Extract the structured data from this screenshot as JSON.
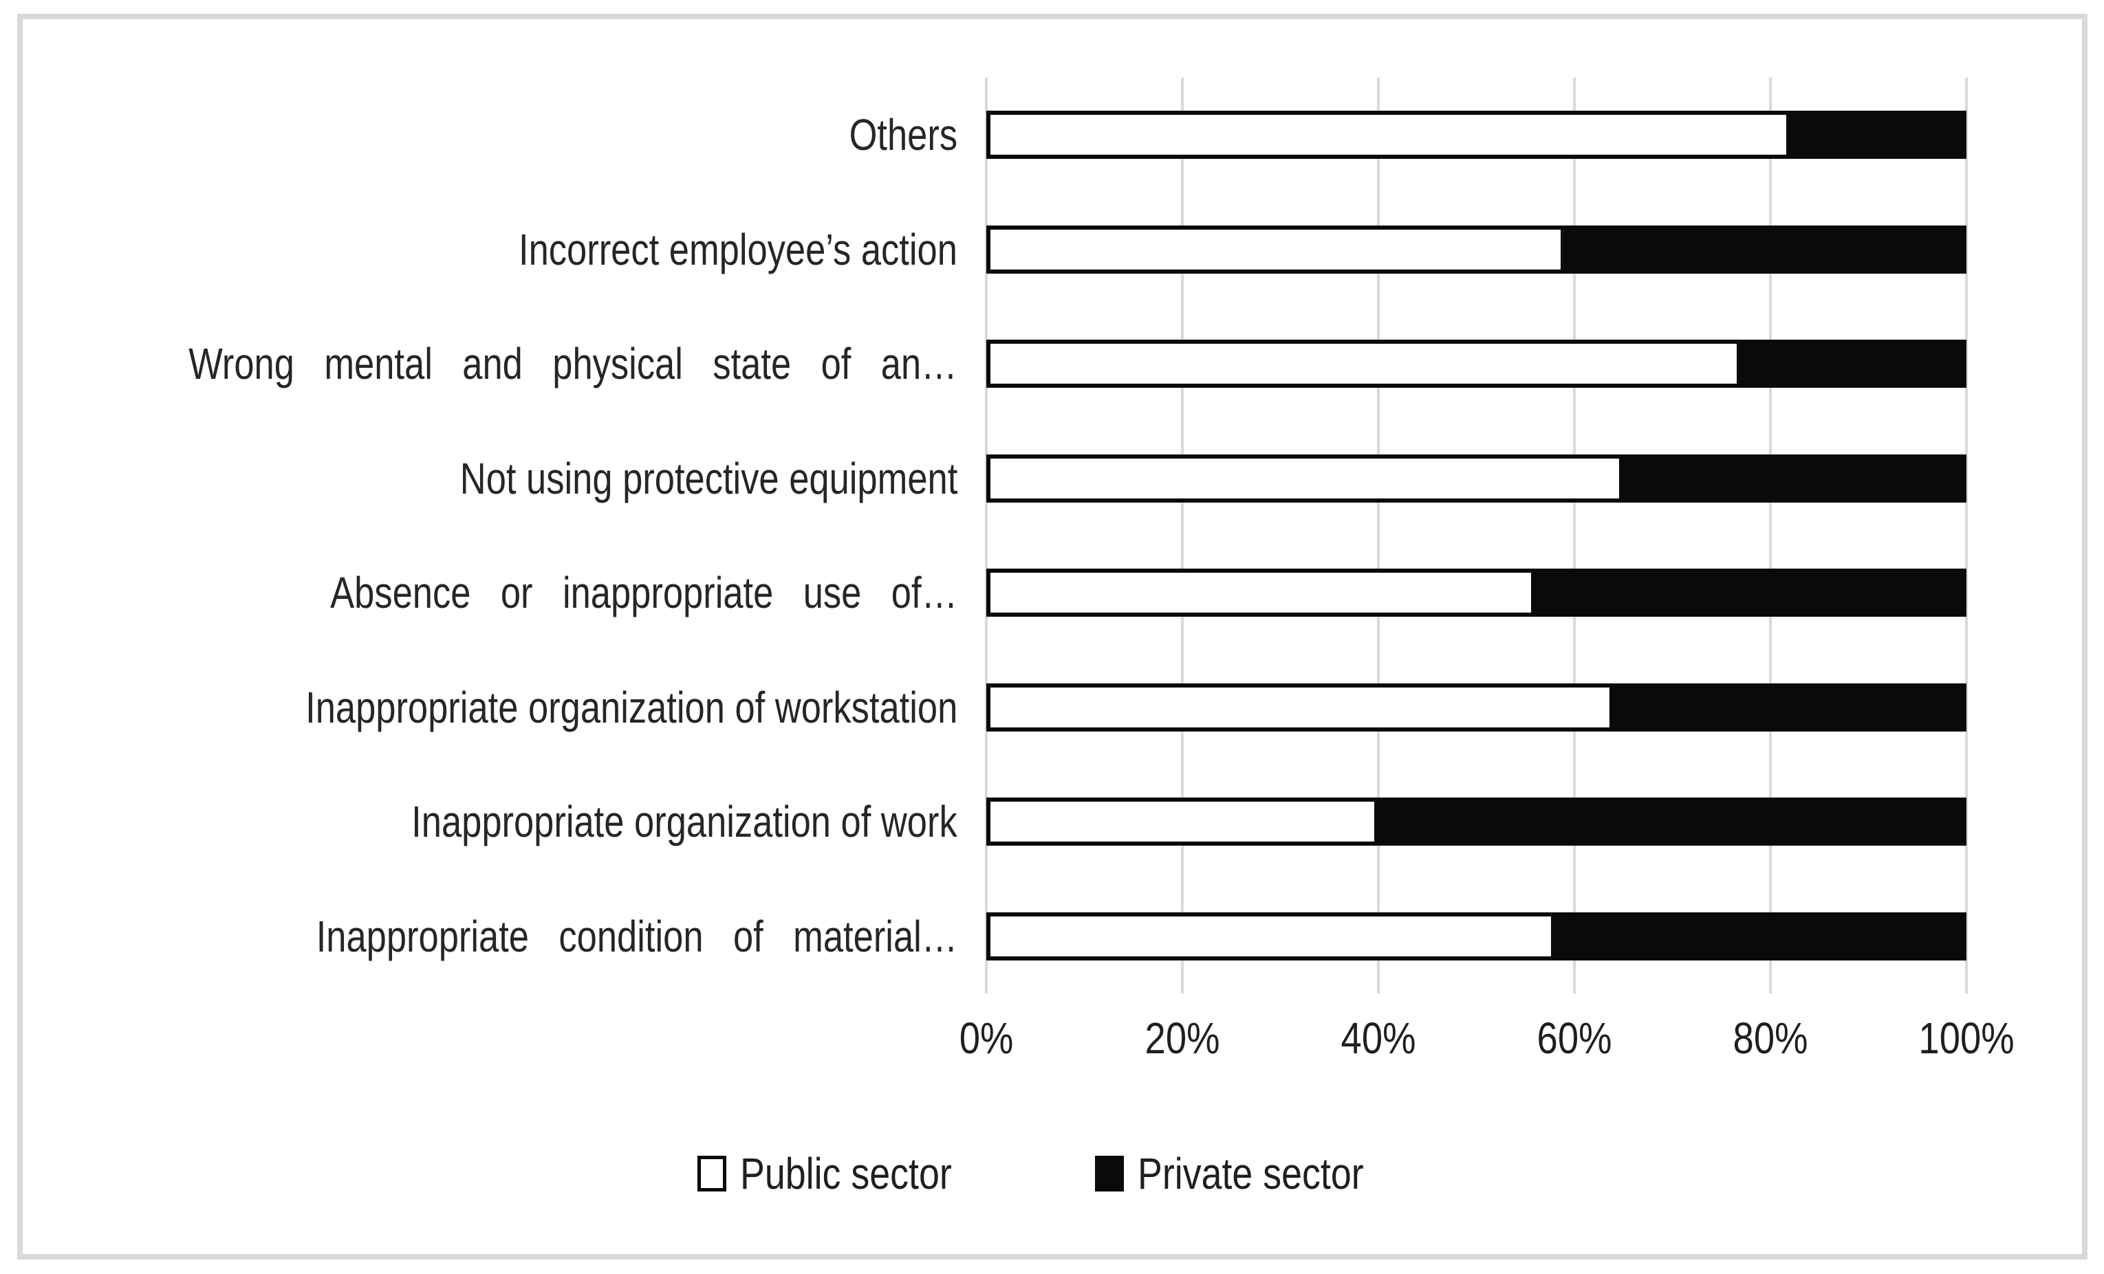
{
  "figure": {
    "background": "#ffffff",
    "frame_border_color": "#d9d9d9"
  },
  "chart_data": {
    "type": "bar",
    "orientation": "horizontal",
    "stacked": true,
    "percent_stacked": true,
    "title": "",
    "xlabel": "",
    "ylabel": "",
    "categories": [
      "Others",
      "Incorrect employee’s action",
      "Wrong mental and physical state of an…",
      "Not using protective equipment",
      "Absence or inappropriate use of…",
      "Inappropriate organization of workstation",
      "Inappropriate organization of work",
      "Inappropriate condition of material…"
    ],
    "series": [
      {
        "name": "Public sector",
        "color": "#ffffff",
        "values": [
          82,
          59,
          77,
          65,
          56,
          64,
          40,
          58
        ]
      },
      {
        "name": "Private sector",
        "color": "#0a0a0a",
        "values": [
          18,
          41,
          23,
          35,
          44,
          36,
          60,
          42
        ]
      }
    ],
    "x_axis": {
      "min": 0,
      "max": 100,
      "gridlines": true,
      "gridline_color": "#d9d9d9",
      "ticks": [
        {
          "label": "0%",
          "value": 0
        },
        {
          "label": "20%",
          "value": 20
        },
        {
          "label": "40%",
          "value": 40
        },
        {
          "label": "60%",
          "value": 60
        },
        {
          "label": "80%",
          "value": 80
        },
        {
          "label": "100%",
          "value": 100
        }
      ]
    },
    "legend": {
      "position": "bottom",
      "items": [
        "Public sector",
        "Private sector"
      ]
    }
  }
}
